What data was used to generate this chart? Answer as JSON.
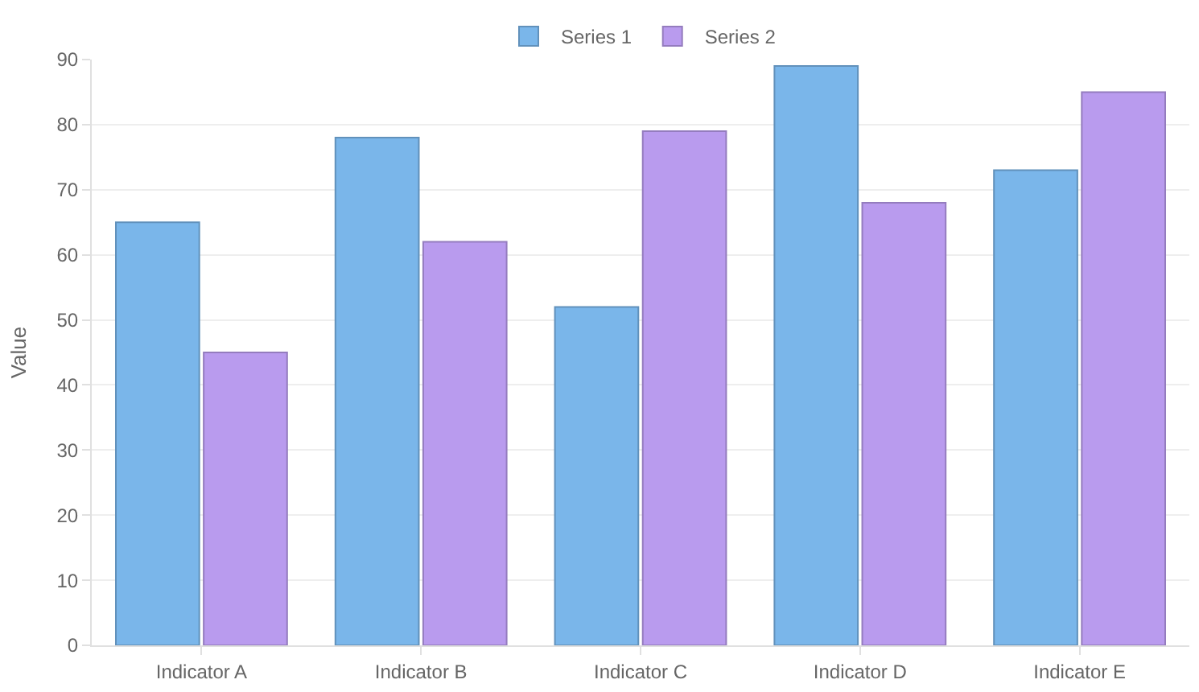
{
  "chart_data": {
    "type": "bar",
    "ylabel": "Value",
    "categories": [
      "Indicator A",
      "Indicator B",
      "Indicator C",
      "Indicator D",
      "Indicator E"
    ],
    "series": [
      {
        "name": "Series 1",
        "color": "#7ab6ea",
        "values": [
          65,
          78,
          52,
          89,
          73
        ]
      },
      {
        "name": "Series 2",
        "color": "#b99bee",
        "values": [
          45,
          62,
          79,
          68,
          85
        ]
      }
    ],
    "ylim": [
      0,
      90
    ],
    "yticks": [
      0,
      10,
      20,
      30,
      40,
      50,
      60,
      70,
      80,
      90
    ],
    "grid": "y",
    "legend": "top"
  }
}
